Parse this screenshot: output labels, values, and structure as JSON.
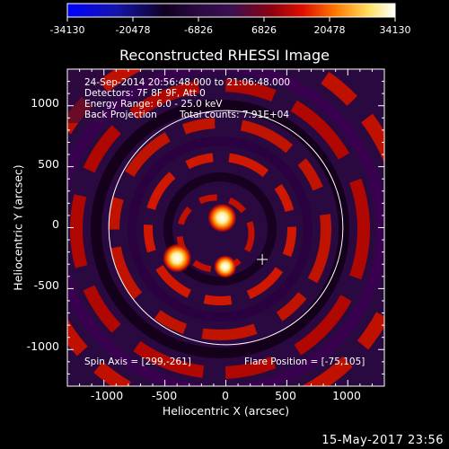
{
  "colorbar": {
    "ticks": [
      "-34130",
      "-20478",
      "-6826",
      "6826",
      "20478",
      "34130"
    ]
  },
  "chart_data": {
    "type": "heatmap",
    "title": "Reconstructed RHESSI Image",
    "xlabel": "Heliocentric X (arcsec)",
    "ylabel": "Heliocentric Y (arcsec)",
    "xlim": [
      -1300,
      1300
    ],
    "ylim": [
      -1300,
      1300
    ],
    "xticks": [
      "-1000",
      "-500",
      "0",
      "500",
      "1000"
    ],
    "yticks": [
      "1000",
      "500",
      "0",
      "-500",
      "-1000"
    ],
    "zlim": [
      -34130,
      34130
    ],
    "colormap": "blue-black-purple-red-yellow-white",
    "sources": [
      {
        "x": -30,
        "y": 80,
        "intensity": 34130
      },
      {
        "x": -400,
        "y": -250,
        "intensity": 34130
      },
      {
        "x": -5,
        "y": -320,
        "intensity": 15000
      }
    ],
    "solar_limb_radius": 960,
    "spin_axis": [
      299,
      -261
    ],
    "flare_position": [
      -75,
      105
    ],
    "annotations": {
      "line1": "24-Sep-2014 20:56:48.000 to 21:06:48.000",
      "line2": "Detectors: 7F 8F 9F, Att 0",
      "line3": "Energy Range: 6.0 - 25.0 keV",
      "line4a": "Back Projection",
      "line4b": "Total counts: 7.91E+04",
      "spin": "Spin Axis = [299,-261]",
      "flare": "Flare Position = [-75,105]"
    }
  },
  "footer": "15-May-2017 23:56"
}
